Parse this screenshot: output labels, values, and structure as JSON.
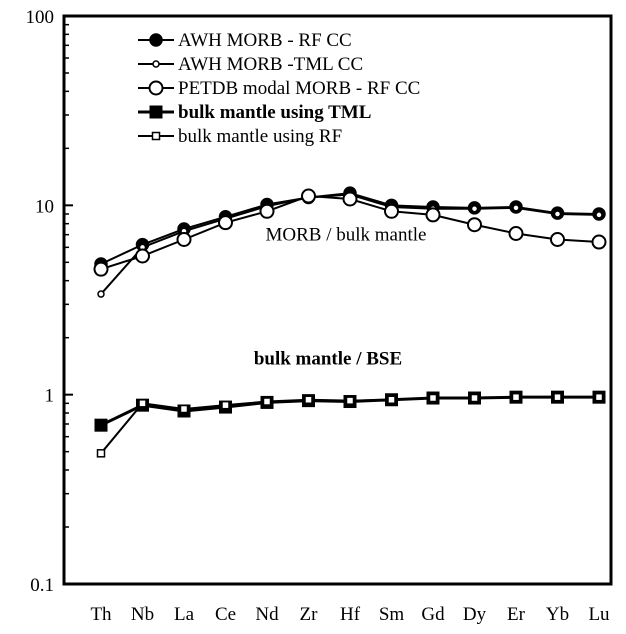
{
  "chart_data": {
    "type": "line",
    "y_scale": "log",
    "ylim": [
      0.1,
      100
    ],
    "y_ticks": [
      "0.1",
      "1",
      "10",
      "100"
    ],
    "categories": [
      "Th",
      "Nb",
      "La",
      "Ce",
      "Nd",
      "Zr",
      "Hf",
      "Sm",
      "Gd",
      "Dy",
      "Er",
      "Yb",
      "Lu"
    ],
    "grid": false,
    "legend_position": "top",
    "series": [
      {
        "name": "AWH MORB - RF CC",
        "marker": "filled-circle",
        "bold": false,
        "values": [
          4.9,
          6.2,
          7.5,
          8.7,
          10.1,
          11.0,
          11.6,
          10.0,
          9.8,
          9.7,
          9.8,
          9.1,
          9.0
        ]
      },
      {
        "name": "AWH MORB -TML CC",
        "marker": "small-open-circle",
        "bold": false,
        "values": [
          3.4,
          6.0,
          7.3,
          8.5,
          9.9,
          11.0,
          11.4,
          9.8,
          9.6,
          9.6,
          9.7,
          9.0,
          8.9
        ]
      },
      {
        "name": "PETDB modal MORB - RF CC",
        "marker": "open-circle",
        "bold": false,
        "values": [
          4.6,
          5.4,
          6.6,
          8.1,
          9.3,
          11.2,
          10.8,
          9.3,
          8.9,
          7.9,
          7.1,
          6.6,
          6.4
        ]
      },
      {
        "name": "bulk mantle using TML",
        "marker": "filled-square",
        "bold": true,
        "values": [
          0.69,
          0.88,
          0.82,
          0.86,
          0.91,
          0.93,
          0.92,
          0.94,
          0.96,
          0.96,
          0.97,
          0.97,
          0.97
        ]
      },
      {
        "name": "bulk mantle using RF",
        "marker": "small-open-square",
        "bold": false,
        "values": [
          0.49,
          0.9,
          0.84,
          0.88,
          0.92,
          0.94,
          0.93,
          0.94,
          0.96,
          0.96,
          0.97,
          0.97,
          0.97
        ]
      }
    ],
    "annotations": [
      {
        "text": "MORB / bulk mantle",
        "bold": false,
        "y_value": 7.0
      },
      {
        "text": "bulk mantle / BSE",
        "bold": true,
        "y_value": 1.55
      }
    ]
  }
}
